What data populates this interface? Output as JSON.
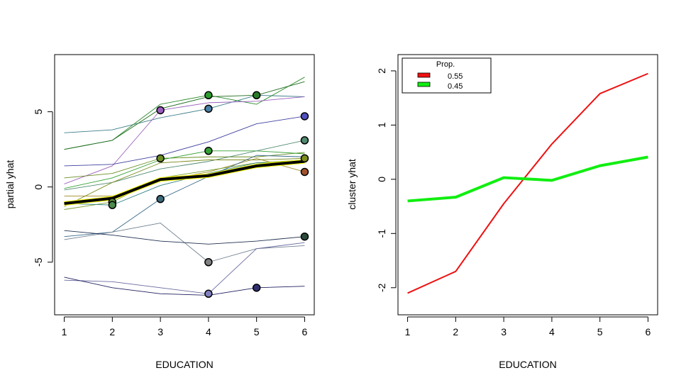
{
  "chart_data": [
    {
      "type": "line",
      "title": "",
      "xlabel": "EDUCATION",
      "ylabel": "partial yhat",
      "xlim": [
        0.8,
        6.2
      ],
      "ylim": [
        -8.5,
        8.8
      ],
      "xticks": [
        "1",
        "2",
        "3",
        "4",
        "5",
        "6"
      ],
      "yticks": [
        {
          "value": -5,
          "label": "-5"
        },
        {
          "value": 0,
          "label": "0"
        },
        {
          "value": 5,
          "label": "5"
        }
      ],
      "grid": false,
      "x": [
        1,
        2,
        3,
        4,
        5,
        6
      ],
      "series": [
        {
          "color": "#3c7d8a",
          "values": [
            3.6,
            3.8,
            4.6,
            5.2,
            6.1,
            6.0
          ],
          "point_index": 3,
          "point_fill": "#4a7fa8"
        },
        {
          "color": "#2e8b2e",
          "values": [
            2.5,
            3.1,
            5.5,
            6.1,
            5.5,
            7.3
          ],
          "point_index": 3,
          "point_fill": "#2e9e2e"
        },
        {
          "color": "#1e6b1e",
          "values": [
            2.5,
            3.1,
            5.2,
            6.0,
            6.1,
            7.0
          ],
          "point_index": 4,
          "point_fill": "#2a7a2a"
        },
        {
          "color": "#9a5fbf",
          "values": [
            0.2,
            1.4,
            5.1,
            5.6,
            5.7,
            6.0
          ],
          "point_index": 2,
          "point_fill": "#9a5fbf"
        },
        {
          "color": "#4040a0",
          "values": [
            1.4,
            1.5,
            2.1,
            3.0,
            4.2,
            4.7
          ],
          "point_index": 5,
          "point_fill": "#5050c0"
        },
        {
          "color": "#6b8e23",
          "values": [
            0.6,
            0.9,
            1.9,
            2.0,
            2.0,
            2.3
          ],
          "point_index": 2,
          "point_fill": "#6b8e23"
        },
        {
          "color": "#33a033",
          "values": [
            -0.1,
            0.6,
            1.8,
            2.4,
            2.4,
            2.2
          ],
          "point_index": 3,
          "point_fill": "#33a033"
        },
        {
          "color": "#508a70",
          "values": [
            -0.2,
            0.3,
            1.2,
            1.7,
            2.4,
            3.1
          ],
          "point_index": 5,
          "point_fill": "#508a70"
        },
        {
          "color": "#a08a28",
          "values": [
            -0.6,
            -0.6,
            0.4,
            1.0,
            1.9,
            1.0
          ],
          "point_index": 5,
          "point_fill": "#a0522d"
        },
        {
          "color": "#7c8c1e",
          "values": [
            -1.3,
            0.3,
            1.6,
            1.8,
            1.8,
            1.9
          ],
          "point_index": 5,
          "point_fill": "#7c8c1e"
        },
        {
          "color": "#7aa02a",
          "values": [
            -1.5,
            -1.0,
            0.6,
            1.1,
            1.6,
            1.8
          ],
          "point_index": 1,
          "point_fill": "#5a8a3a"
        },
        {
          "color": "#2f7f80",
          "values": [
            -1.1,
            -1.2,
            0.1,
            0.9,
            1.6,
            1.6
          ],
          "point_index": 1,
          "point_fill": "#4a8a4a"
        },
        {
          "color": "#3a6a8a",
          "values": [
            -3.3,
            -3.0,
            -0.8,
            0.7,
            2.1,
            2.0
          ],
          "point_index": 2,
          "point_fill": "#3a6a7a"
        },
        {
          "color": "#708090",
          "values": [
            -3.5,
            -3.0,
            -2.4,
            -5.0,
            -4.1,
            -3.9
          ],
          "point_index": 3,
          "point_fill": "#808080"
        },
        {
          "color": "#203050",
          "values": [
            -2.9,
            -3.2,
            -3.6,
            -3.8,
            -3.6,
            -3.3
          ],
          "point_index": 5,
          "point_fill": "#2a4a3a"
        },
        {
          "color": "#6a6aa0",
          "values": [
            -6.2,
            -6.3,
            -6.7,
            -7.1,
            -4.1,
            -3.7
          ],
          "point_index": 3,
          "point_fill": "#8080c0"
        },
        {
          "color": "#202060",
          "values": [
            -6.0,
            -6.7,
            -7.1,
            -7.2,
            -6.7,
            -6.6
          ],
          "point_index": 4,
          "point_fill": "#303070"
        }
      ],
      "average": {
        "values": [
          -1.1,
          -0.75,
          0.5,
          0.75,
          1.4,
          1.7
        ],
        "color": "#000000",
        "highlight": "#ffff00"
      }
    },
    {
      "type": "line",
      "title": "",
      "xlabel": "EDUCATION",
      "ylabel": "cluster yhat",
      "xlim": [
        0.8,
        6.2
      ],
      "ylim": [
        -2.5,
        2.3
      ],
      "xticks": [
        "1",
        "2",
        "3",
        "4",
        "5",
        "6"
      ],
      "yticks": [
        {
          "value": -2,
          "label": "-2"
        },
        {
          "value": -1,
          "label": "-1"
        },
        {
          "value": 0,
          "label": "0"
        },
        {
          "value": 1,
          "label": "1"
        },
        {
          "value": 2,
          "label": "2"
        }
      ],
      "grid": false,
      "x": [
        1,
        2,
        3,
        4,
        5,
        6
      ],
      "legend": {
        "title": "Prop.",
        "position": "top-left"
      },
      "series": [
        {
          "name": "0.55",
          "color": "#ee1111",
          "width": 2,
          "values": [
            -2.1,
            -1.7,
            -0.45,
            0.65,
            1.58,
            1.95
          ]
        },
        {
          "name": "0.45",
          "color": "#11ee11",
          "width": 4,
          "values": [
            -0.4,
            -0.33,
            0.03,
            -0.02,
            0.25,
            0.41
          ]
        }
      ]
    }
  ]
}
